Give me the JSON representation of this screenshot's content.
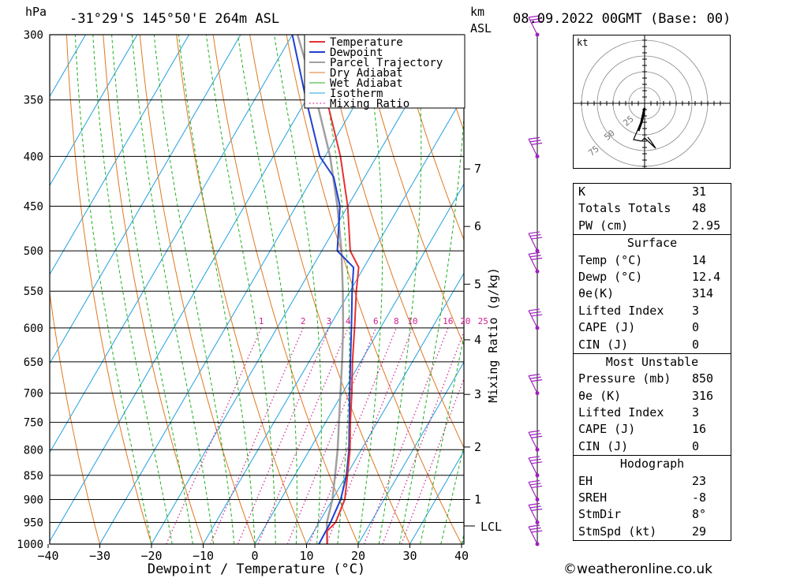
{
  "header": {
    "hpa_label": "hPa",
    "location": "-31°29'S  145°50'E  264m  ASL",
    "km_label": "km",
    "asl_label": "ASL",
    "datetime": "08.09.2022  00GMT  (Base: 00)"
  },
  "axes": {
    "xlabel": "Dewpoint / Temperature (°C)",
    "mixing_label": "Mixing Ratio (g/kg)",
    "lcl_label": "LCL"
  },
  "legend": {
    "items": [
      "Temperature",
      "Dewpoint",
      "Parcel Trajectory",
      "Dry Adiabat",
      "Wet Adiabat",
      "Isotherm",
      "Mixing Ratio"
    ]
  },
  "hodograph": {
    "unit_label": "kt",
    "ring_labels": [
      "25",
      "50",
      "75"
    ]
  },
  "indices": {
    "top": [
      {
        "k": "K",
        "v": "31"
      },
      {
        "k": "Totals Totals",
        "v": "48"
      },
      {
        "k": "PW (cm)",
        "v": "2.95"
      }
    ],
    "surface_title": "Surface",
    "surface": [
      {
        "k": "Temp (°C)",
        "v": "14"
      },
      {
        "k": "Dewp (°C)",
        "v": "12.4"
      },
      {
        "k": "θe(K)",
        "v": "314"
      },
      {
        "k": "Lifted Index",
        "v": "3"
      },
      {
        "k": "CAPE (J)",
        "v": "0"
      },
      {
        "k": "CIN (J)",
        "v": "0"
      }
    ],
    "mu_title": "Most Unstable",
    "mu": [
      {
        "k": "Pressure (mb)",
        "v": "850"
      },
      {
        "k": "θe (K)",
        "v": "316"
      },
      {
        "k": "Lifted Index",
        "v": "3"
      },
      {
        "k": "CAPE (J)",
        "v": "16"
      },
      {
        "k": "CIN (J)",
        "v": "0"
      }
    ],
    "hodo_title": "Hodograph",
    "hodo": [
      {
        "k": "EH",
        "v": "23"
      },
      {
        "k": "SREH",
        "v": "-8"
      },
      {
        "k": "StmDir",
        "v": "8°"
      },
      {
        "k": "StmSpd (kt)",
        "v": "29"
      }
    ]
  },
  "credit": "©weatheronline.co.uk",
  "colors": {
    "temperature": "#e83030",
    "dewpoint": "#2040d0",
    "parcel": "#a0a0a0",
    "dry_adiabat": "#e07820",
    "wet_adiabat": "#20b020",
    "isotherm": "#20a0e0",
    "mixing_ratio": "#d02090",
    "wind": "#a020c0"
  },
  "chart_data": {
    "type": "line",
    "pressure_levels": [
      300,
      350,
      400,
      450,
      500,
      550,
      600,
      650,
      700,
      750,
      800,
      850,
      900,
      950,
      1000
    ],
    "temp_ticks": [
      -40,
      -30,
      -20,
      -10,
      0,
      10,
      20,
      30,
      40
    ],
    "height_ticks_km": [
      "1",
      "2",
      "3",
      "4",
      "5",
      "6",
      "7"
    ],
    "mixing_ratio_labels": [
      "1",
      "2",
      "3",
      "4",
      "6",
      "8",
      "10",
      "16",
      "20",
      "25"
    ],
    "series": [
      {
        "name": "Temperature",
        "points": [
          [
            1000,
            14
          ],
          [
            970,
            12.5
          ],
          [
            950,
            13.2
          ],
          [
            900,
            12.4
          ],
          [
            850,
            10.2
          ],
          [
            800,
            7.8
          ],
          [
            750,
            4.8
          ],
          [
            700,
            1.8
          ],
          [
            650,
            -1.6
          ],
          [
            600,
            -5
          ],
          [
            550,
            -8.8
          ],
          [
            520,
            -11
          ],
          [
            500,
            -14.5
          ],
          [
            450,
            -20
          ],
          [
            400,
            -27
          ],
          [
            350,
            -36
          ],
          [
            300,
            -45.5
          ]
        ]
      },
      {
        "name": "Dewpoint",
        "points": [
          [
            1000,
            12.4
          ],
          [
            950,
            12.2
          ],
          [
            900,
            11.6
          ],
          [
            850,
            10
          ],
          [
            800,
            7.6
          ],
          [
            750,
            4.6
          ],
          [
            700,
            1.4
          ],
          [
            650,
            -2
          ],
          [
            600,
            -5.6
          ],
          [
            550,
            -9.6
          ],
          [
            520,
            -12
          ],
          [
            500,
            -17
          ],
          [
            450,
            -21.5
          ],
          [
            420,
            -26
          ],
          [
            400,
            -31
          ],
          [
            350,
            -40
          ],
          [
            300,
            -50
          ]
        ]
      },
      {
        "name": "Parcel Trajectory",
        "points": [
          [
            1000,
            14
          ],
          [
            950,
            11.5
          ],
          [
            900,
            10
          ],
          [
            850,
            7.8
          ],
          [
            800,
            5.4
          ],
          [
            750,
            2.6
          ],
          [
            700,
            -0.4
          ],
          [
            650,
            -3.6
          ],
          [
            600,
            -7.2
          ],
          [
            550,
            -11.4
          ],
          [
            500,
            -16.2
          ],
          [
            450,
            -22
          ],
          [
            400,
            -29
          ],
          [
            350,
            -38
          ],
          [
            300,
            -49
          ]
        ]
      }
    ]
  }
}
